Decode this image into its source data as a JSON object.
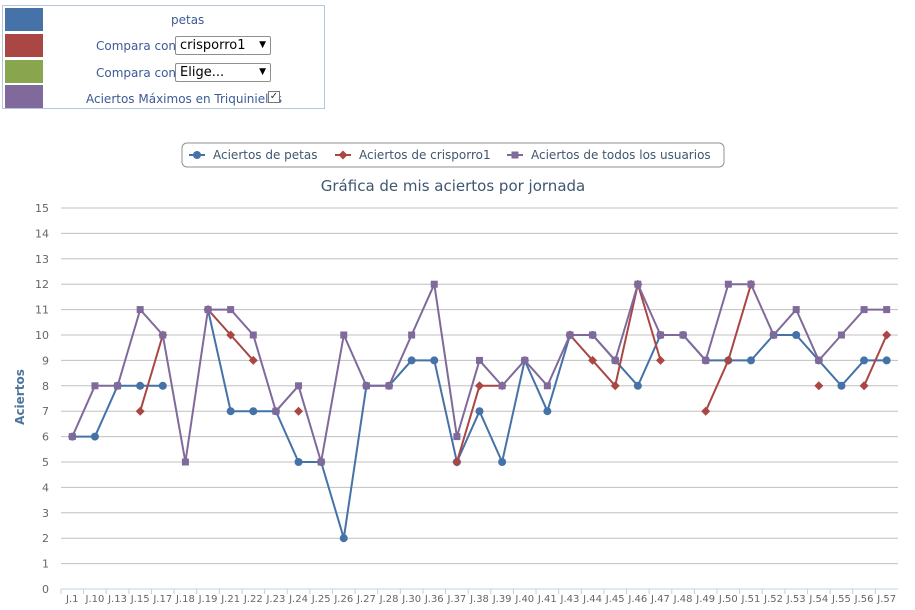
{
  "settings_panel": {
    "rows": [
      {
        "color": "#4572A7",
        "label": "petas"
      },
      {
        "color": "#AA4643",
        "label": "Compara con",
        "select_value": "crisporro1"
      },
      {
        "color": "#89A54E",
        "label": "Compara con",
        "select_value": "Elige..."
      },
      {
        "color": "#80699B",
        "label": "Aciertos Máximos en Triquinielas",
        "checked": true
      }
    ],
    "select_arrow_icon": "chevron-down-icon",
    "checkbox_icon": "checkmark-icon"
  },
  "chart_data": {
    "type": "line",
    "title": "Gráfica de mis aciertos por jornada",
    "ylabel": "Aciertos",
    "xlabel": "",
    "ylim": [
      0,
      15
    ],
    "yticks": [
      0,
      1,
      2,
      3,
      4,
      5,
      6,
      7,
      8,
      9,
      10,
      11,
      12,
      13,
      14,
      15
    ],
    "grid": true,
    "legend_position": "top-center",
    "categories": [
      "J.1",
      "J.10",
      "J.13",
      "J.15",
      "J.17",
      "J.18",
      "J.19",
      "J.21",
      "J.22",
      "J.23",
      "J.24",
      "J.25",
      "J.26",
      "J.27",
      "J.28",
      "J.30",
      "J.36",
      "J.37",
      "J.38",
      "J.39",
      "J.40",
      "J.41",
      "J.43",
      "J.44",
      "J.45",
      "J.46",
      "J.47",
      "J.48",
      "J.49",
      "J.50",
      "J.51",
      "J.52",
      "J.53",
      "J.54",
      "J.55",
      "J.56",
      "J.57"
    ],
    "series": [
      {
        "name": "Aciertos de petas",
        "color": "#4572A7",
        "marker": "circle",
        "values": [
          6,
          6,
          8,
          8,
          8,
          null,
          11,
          7,
          7,
          7,
          5,
          5,
          2,
          8,
          8,
          9,
          9,
          5,
          7,
          5,
          9,
          7,
          10,
          10,
          9,
          8,
          10,
          10,
          9,
          9,
          9,
          10,
          10,
          9,
          8,
          9,
          9
        ]
      },
      {
        "name": "Aciertos de crisporro1",
        "color": "#AA4643",
        "marker": "diamond",
        "values": [
          null,
          null,
          null,
          7,
          10,
          null,
          11,
          10,
          9,
          null,
          7,
          null,
          null,
          null,
          null,
          null,
          null,
          5,
          8,
          8,
          null,
          null,
          10,
          9,
          8,
          12,
          9,
          null,
          7,
          9,
          12,
          null,
          null,
          8,
          null,
          8,
          10
        ]
      },
      {
        "name": "Aciertos de todos los usuarios",
        "color": "#80699B",
        "marker": "square",
        "values": [
          6,
          8,
          8,
          11,
          10,
          5,
          11,
          11,
          10,
          7,
          8,
          5,
          10,
          8,
          8,
          10,
          12,
          6,
          9,
          8,
          9,
          8,
          10,
          10,
          9,
          12,
          10,
          10,
          9,
          12,
          12,
          10,
          11,
          9,
          10,
          11,
          11
        ]
      }
    ]
  }
}
